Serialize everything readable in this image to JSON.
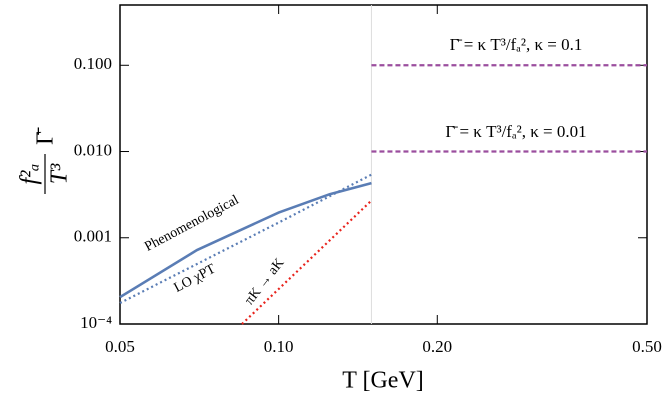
{
  "chart_data": {
    "type": "line",
    "xlabel": "T [GeV]",
    "ylabel": {
      "numerator": "f²ₐ",
      "denominator": "T³",
      "factor": "Γ̄"
    },
    "xscale": "log",
    "yscale": "log",
    "xlim": [
      0.05,
      0.5
    ],
    "ylim": [
      0.0001,
      0.5
    ],
    "xticks": [
      {
        "value": 0.05,
        "label": "0.05"
      },
      {
        "value": 0.1,
        "label": "0.10"
      },
      {
        "value": 0.2,
        "label": "0.20"
      },
      {
        "value": 0.5,
        "label": "0.50"
      }
    ],
    "yticks": [
      {
        "value": 0.0001,
        "label": "10⁻⁴"
      },
      {
        "value": 0.001,
        "label": "0.001"
      },
      {
        "value": 0.01,
        "label": "0.010"
      },
      {
        "value": 0.1,
        "label": "0.100"
      }
    ],
    "vline": 0.15,
    "series": [
      {
        "name": "Phenomenological",
        "color": "#5a7db5",
        "style": "solid",
        "x": [
          0.05,
          0.07,
          0.1,
          0.125,
          0.15
        ],
        "values": [
          0.000205,
          0.00072,
          0.00196,
          0.0032,
          0.0043
        ]
      },
      {
        "name": "LO χPT",
        "color": "#5a7db5",
        "style": "dotted",
        "x": [
          0.05,
          0.1,
          0.15
        ],
        "values": [
          0.000175,
          0.0015,
          0.0054
        ]
      },
      {
        "name": "πK → aK",
        "color": "#e8231c",
        "style": "dotted",
        "x": [
          0.0852,
          0.15
        ],
        "values": [
          0.0001,
          0.0027
        ]
      },
      {
        "name": "Γ̄ = κ T³/fₐ², κ = 0.1",
        "color": "#9b4e9e",
        "style": "dashed",
        "x": [
          0.15,
          0.5
        ],
        "values": [
          0.1,
          0.1
        ]
      },
      {
        "name": "Γ̄ = κ T³/fₐ², κ = 0.01",
        "color": "#9b4e9e",
        "style": "dashed",
        "x": [
          0.15,
          0.5
        ],
        "values": [
          0.01,
          0.01
        ]
      }
    ]
  }
}
